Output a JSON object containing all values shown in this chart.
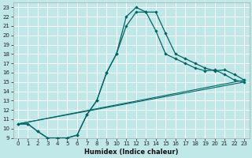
{
  "xlabel": "Humidex (Indice chaleur)",
  "background_color": "#c0e8e8",
  "grid_color": "#ffffff",
  "line_color": "#006666",
  "xlim": [
    -0.5,
    23.5
  ],
  "ylim": [
    9,
    23.5
  ],
  "xticks": [
    0,
    1,
    2,
    3,
    4,
    5,
    6,
    7,
    8,
    9,
    10,
    11,
    12,
    13,
    14,
    15,
    16,
    17,
    18,
    19,
    20,
    21,
    22,
    23
  ],
  "yticks": [
    9,
    10,
    11,
    12,
    13,
    14,
    15,
    16,
    17,
    18,
    19,
    20,
    21,
    22,
    23
  ],
  "line1_x": [
    0,
    1,
    2,
    3,
    4,
    5,
    6,
    7,
    8,
    9,
    10,
    11,
    12,
    13,
    14,
    15,
    16,
    17,
    18,
    19,
    20,
    21,
    22,
    23
  ],
  "line1_y": [
    10.5,
    10.5,
    9.7,
    9.0,
    9.0,
    9.0,
    9.3,
    11.5,
    13.0,
    16.0,
    18.0,
    22.0,
    23.0,
    22.5,
    22.5,
    20.2,
    18.0,
    17.5,
    17.0,
    16.5,
    16.2,
    16.3,
    15.8,
    15.2
  ],
  "line2_x": [
    0,
    1,
    2,
    3,
    4,
    5,
    6,
    7,
    8,
    9,
    10,
    11,
    12,
    13,
    14,
    15,
    16,
    17,
    18,
    19,
    20,
    21,
    22,
    23
  ],
  "line2_y": [
    10.5,
    10.5,
    9.7,
    9.0,
    9.0,
    9.0,
    9.3,
    11.5,
    13.0,
    16.0,
    18.0,
    21.0,
    22.5,
    22.5,
    20.5,
    18.0,
    17.5,
    17.0,
    16.5,
    16.2,
    16.3,
    15.8,
    15.2,
    15.0
  ],
  "line3_x": [
    0,
    23
  ],
  "line3_y": [
    10.5,
    15.2
  ],
  "line4_x": [
    0,
    23
  ],
  "line4_y": [
    10.5,
    15.0
  ],
  "xlabel_fontsize": 6,
  "tick_labelsize": 5
}
